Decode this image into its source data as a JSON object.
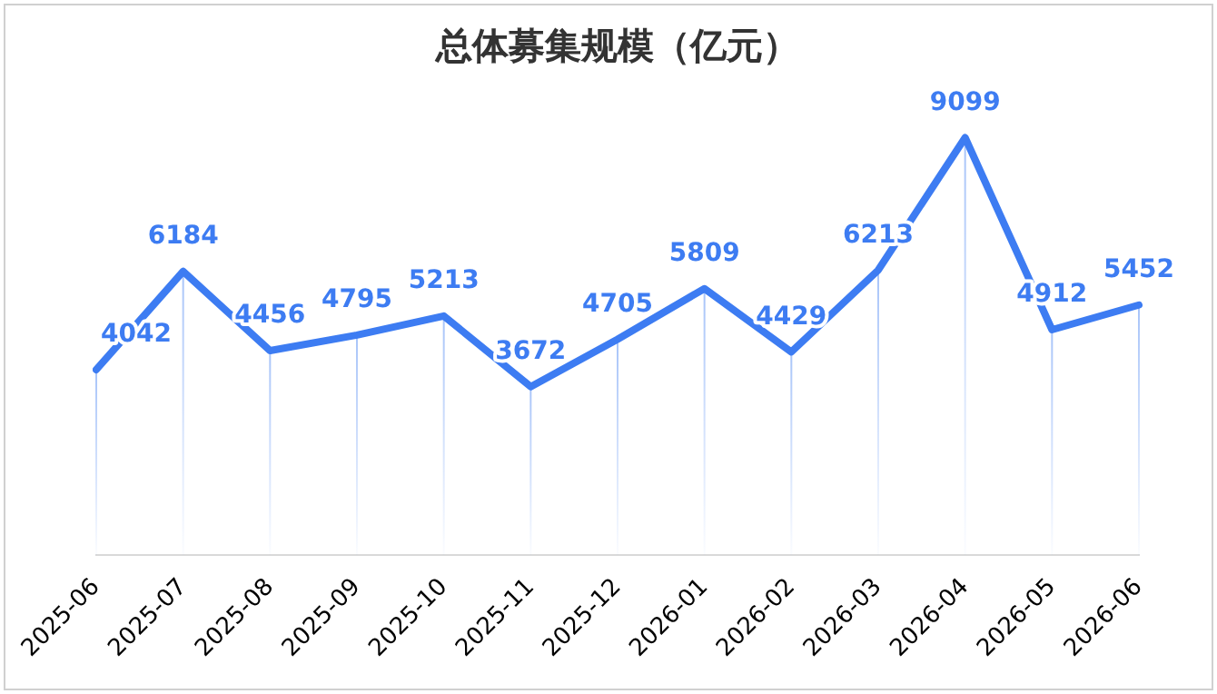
{
  "chart_data": {
    "type": "line",
    "title": "总体募集规模（亿元）",
    "categories": [
      "2025-06",
      "2025-07",
      "2025-08",
      "2025-09",
      "2025-10",
      "2025-11",
      "2025-12",
      "2026-01",
      "2026-02",
      "2026-03",
      "2026-04",
      "2026-05",
      "2026-06"
    ],
    "series": [
      {
        "color": "#3d7cf2",
        "values": [
          4042,
          6184,
          4456,
          4795,
          5213,
          3672,
          4705,
          5809,
          4429,
          6213,
          9099,
          4912,
          5452
        ]
      }
    ],
    "tick_labels": "x",
    "data_labels": true,
    "grid": "x",
    "legend": false,
    "marker": "none",
    "line_style": "solid"
  }
}
